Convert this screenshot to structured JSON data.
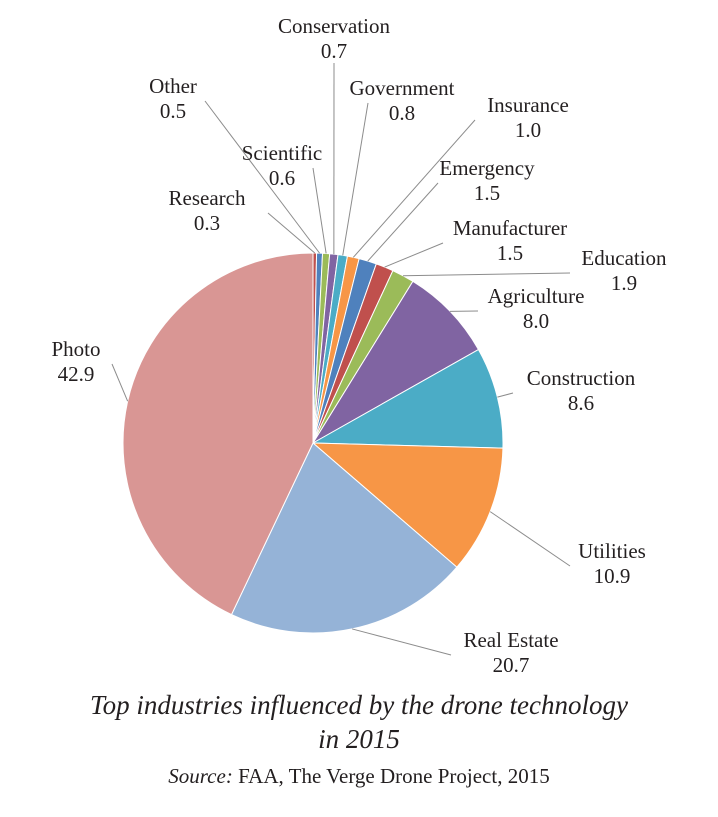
{
  "chart_data": {
    "type": "pie",
    "title_lines": [
      "Top industries influenced by the drone technology",
      "in 2015"
    ],
    "source": {
      "label": "Source:",
      "text": " FAA, The Verge Drone Project, 2015"
    },
    "slices": [
      {
        "name": "Research",
        "value": 0.3,
        "display": "0.3",
        "color": "#c0504d"
      },
      {
        "name": "Other",
        "value": 0.5,
        "display": "0.5",
        "color": "#4f81bd"
      },
      {
        "name": "Scientific",
        "value": 0.6,
        "display": "0.6",
        "color": "#9bbb59"
      },
      {
        "name": "Conservation",
        "value": 0.7,
        "display": "0.7",
        "color": "#8064a2"
      },
      {
        "name": "Government",
        "value": 0.8,
        "display": "0.8",
        "color": "#4bacc6"
      },
      {
        "name": "Insurance",
        "value": 1.0,
        "display": "1.0",
        "color": "#f79646"
      },
      {
        "name": "Emergency",
        "value": 1.5,
        "display": "1.5",
        "color": "#4f81bd"
      },
      {
        "name": "Manufacturer",
        "value": 1.5,
        "display": "1.5",
        "color": "#c0504d"
      },
      {
        "name": "Education",
        "value": 1.9,
        "display": "1.9",
        "color": "#9bbb59"
      },
      {
        "name": "Agriculture",
        "value": 8.0,
        "display": "8.0",
        "color": "#8064a2"
      },
      {
        "name": "Construction",
        "value": 8.6,
        "display": "8.6",
        "color": "#4bacc6"
      },
      {
        "name": "Utilities",
        "value": 10.9,
        "display": "10.9",
        "color": "#f79646"
      },
      {
        "name": "Real Estate",
        "value": 20.7,
        "display": "20.7",
        "color": "#95b3d7"
      },
      {
        "name": "Photo",
        "value": 42.9,
        "display": "42.9",
        "color": "#d99694"
      }
    ]
  }
}
